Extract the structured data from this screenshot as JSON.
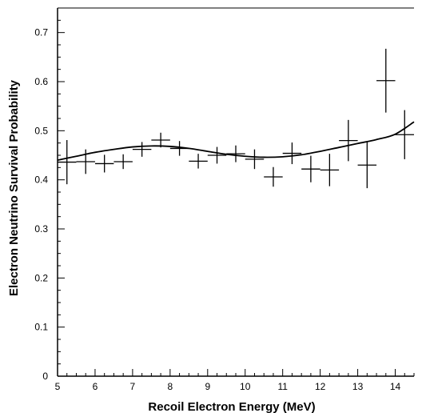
{
  "chart_data": {
    "type": "scatter",
    "title": "",
    "xlabel": "Recoil Electron Energy (MeV)",
    "ylabel": "Electron Neutrino Survival Probability",
    "xlim": [
      5,
      14.5
    ],
    "ylim": [
      0,
      0.75
    ],
    "grid": false,
    "xticks": [
      5,
      6,
      7,
      8,
      9,
      10,
      11,
      12,
      13,
      14
    ],
    "xtick_labels": [
      "5",
      "6",
      "7",
      "8",
      "9",
      "10",
      "11",
      "12",
      "13",
      "14"
    ],
    "yticks": [
      0,
      0.1,
      0.2,
      0.3,
      0.4,
      0.5,
      0.6,
      0.7
    ],
    "ytick_labels": [
      "0",
      "0.1",
      "0.2",
      "0.3",
      "0.4",
      "0.5",
      "0.6",
      "0.7"
    ],
    "series": [
      {
        "style": "error-bar-crosses",
        "color": "#000000",
        "x_halfwidth": 0.25,
        "points": [
          {
            "x": 5.25,
            "y": 0.436,
            "yerr": 0.045
          },
          {
            "x": 5.75,
            "y": 0.437,
            "yerr": 0.025
          },
          {
            "x": 6.25,
            "y": 0.433,
            "yerr": 0.018
          },
          {
            "x": 6.75,
            "y": 0.437,
            "yerr": 0.015
          },
          {
            "x": 7.25,
            "y": 0.462,
            "yerr": 0.015
          },
          {
            "x": 7.75,
            "y": 0.481,
            "yerr": 0.015
          },
          {
            "x": 8.25,
            "y": 0.464,
            "yerr": 0.015
          },
          {
            "x": 8.75,
            "y": 0.438,
            "yerr": 0.015
          },
          {
            "x": 9.25,
            "y": 0.45,
            "yerr": 0.017
          },
          {
            "x": 9.75,
            "y": 0.453,
            "yerr": 0.017
          },
          {
            "x": 10.25,
            "y": 0.442,
            "yerr": 0.02
          },
          {
            "x": 10.75,
            "y": 0.406,
            "yerr": 0.02
          },
          {
            "x": 11.25,
            "y": 0.454,
            "yerr": 0.022
          },
          {
            "x": 11.75,
            "y": 0.422,
            "yerr": 0.027
          },
          {
            "x": 12.25,
            "y": 0.42,
            "yerr": 0.033
          },
          {
            "x": 12.75,
            "y": 0.48,
            "yerr": 0.042
          },
          {
            "x": 13.25,
            "y": 0.43,
            "yerr": 0.047
          },
          {
            "x": 13.75,
            "y": 0.602,
            "yerr": 0.065
          },
          {
            "x": 14.25,
            "y": 0.492,
            "yerr": 0.05
          }
        ]
      },
      {
        "style": "line",
        "color": "#000000",
        "x": [
          5.0,
          5.5,
          6.0,
          6.5,
          7.0,
          7.5,
          8.0,
          8.5,
          9.0,
          9.5,
          10.0,
          10.5,
          11.0,
          11.5,
          12.0,
          12.5,
          13.0,
          13.5,
          14.0,
          14.5
        ],
        "y": [
          0.44,
          0.448,
          0.456,
          0.462,
          0.467,
          0.469,
          0.468,
          0.464,
          0.458,
          0.452,
          0.448,
          0.446,
          0.447,
          0.451,
          0.458,
          0.466,
          0.474,
          0.482,
          0.493,
          0.518
        ]
      }
    ]
  }
}
